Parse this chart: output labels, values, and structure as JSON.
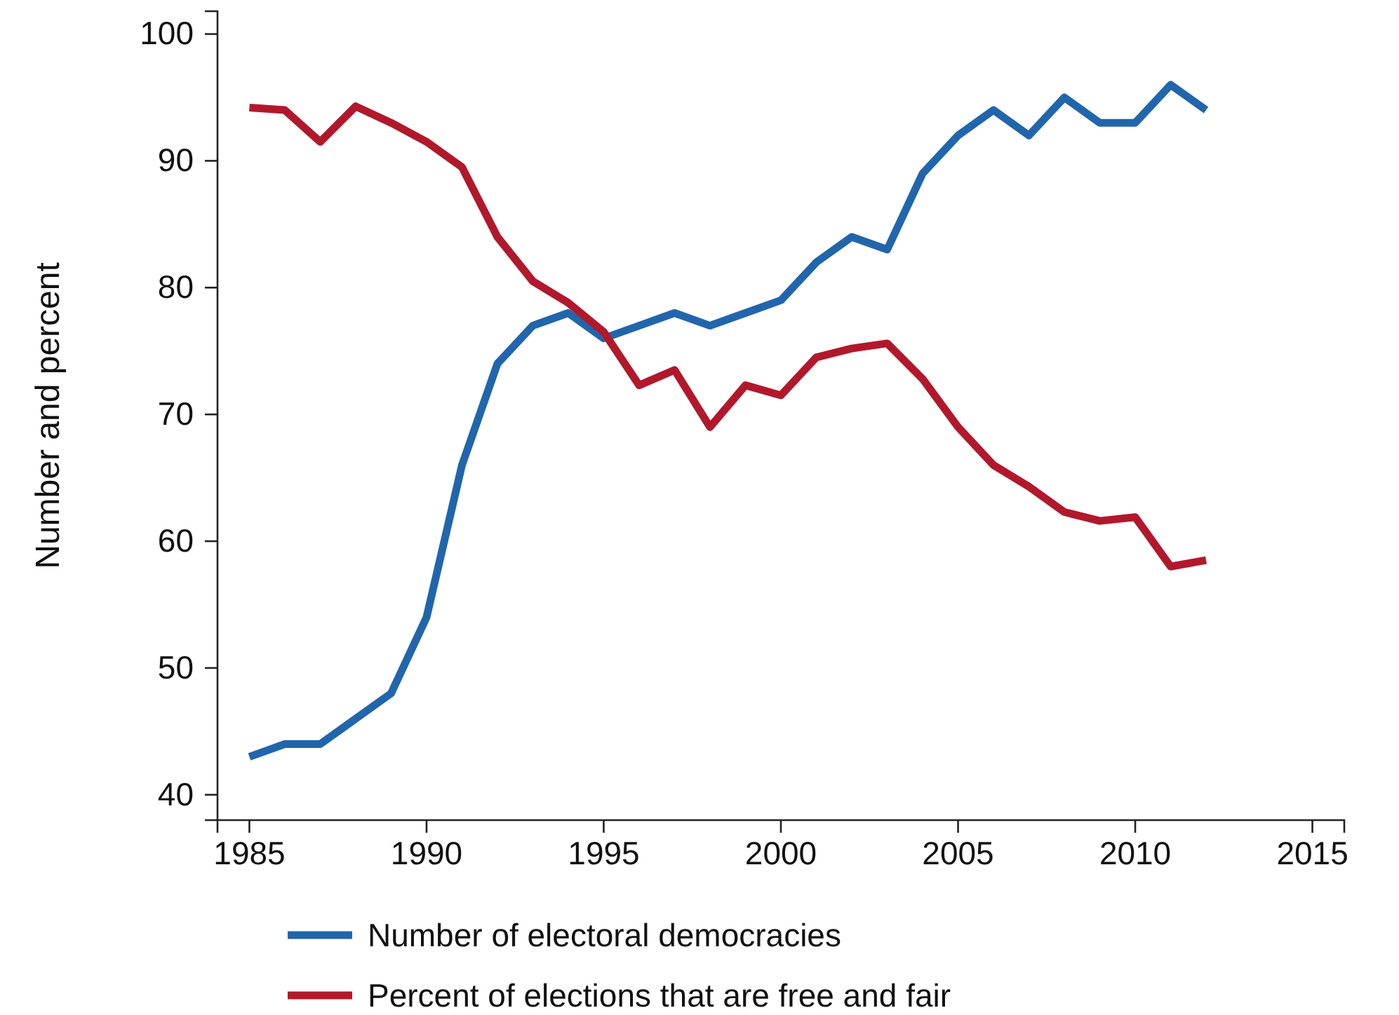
{
  "chart_data": {
    "type": "line",
    "ylabel": "Number and percent",
    "x": [
      1985,
      1986,
      1987,
      1988,
      1989,
      1990,
      1991,
      1992,
      1993,
      1994,
      1995,
      1996,
      1997,
      1998,
      1999,
      2000,
      2001,
      2002,
      2003,
      2004,
      2005,
      2006,
      2007,
      2008,
      2009,
      2010,
      2011,
      2012
    ],
    "series": [
      {
        "name": "Number of electoral democracies",
        "color": "#2166ac",
        "values": [
          43,
          44,
          44,
          46,
          48,
          54,
          66,
          74,
          77,
          78,
          76,
          77,
          78,
          77,
          78,
          79,
          82,
          84,
          83,
          89,
          92,
          94,
          92,
          95,
          93,
          93,
          96,
          94
        ]
      },
      {
        "name": "Percent of elections that are free and fair",
        "color": "#b2182b",
        "values": [
          94.2,
          94,
          91.5,
          94.3,
          93,
          91.5,
          89.5,
          84,
          80.5,
          78.8,
          76.5,
          72.3,
          73.5,
          69,
          72.3,
          71.5,
          74.5,
          75.2,
          75.6,
          72.8,
          69,
          66,
          64.3,
          62.3,
          61.6,
          61.9,
          58,
          58.5
        ]
      }
    ],
    "xlim": [
      1984.1,
      2015.9
    ],
    "xticks": [
      1985,
      1990,
      1995,
      2000,
      2005,
      2010,
      2015
    ],
    "ylim": [
      38,
      101.8
    ],
    "yticks": [
      40,
      50,
      60,
      70,
      80,
      90,
      100
    ],
    "grid": false,
    "legend": "bottom",
    "marker": "none",
    "line_style": "solid"
  }
}
